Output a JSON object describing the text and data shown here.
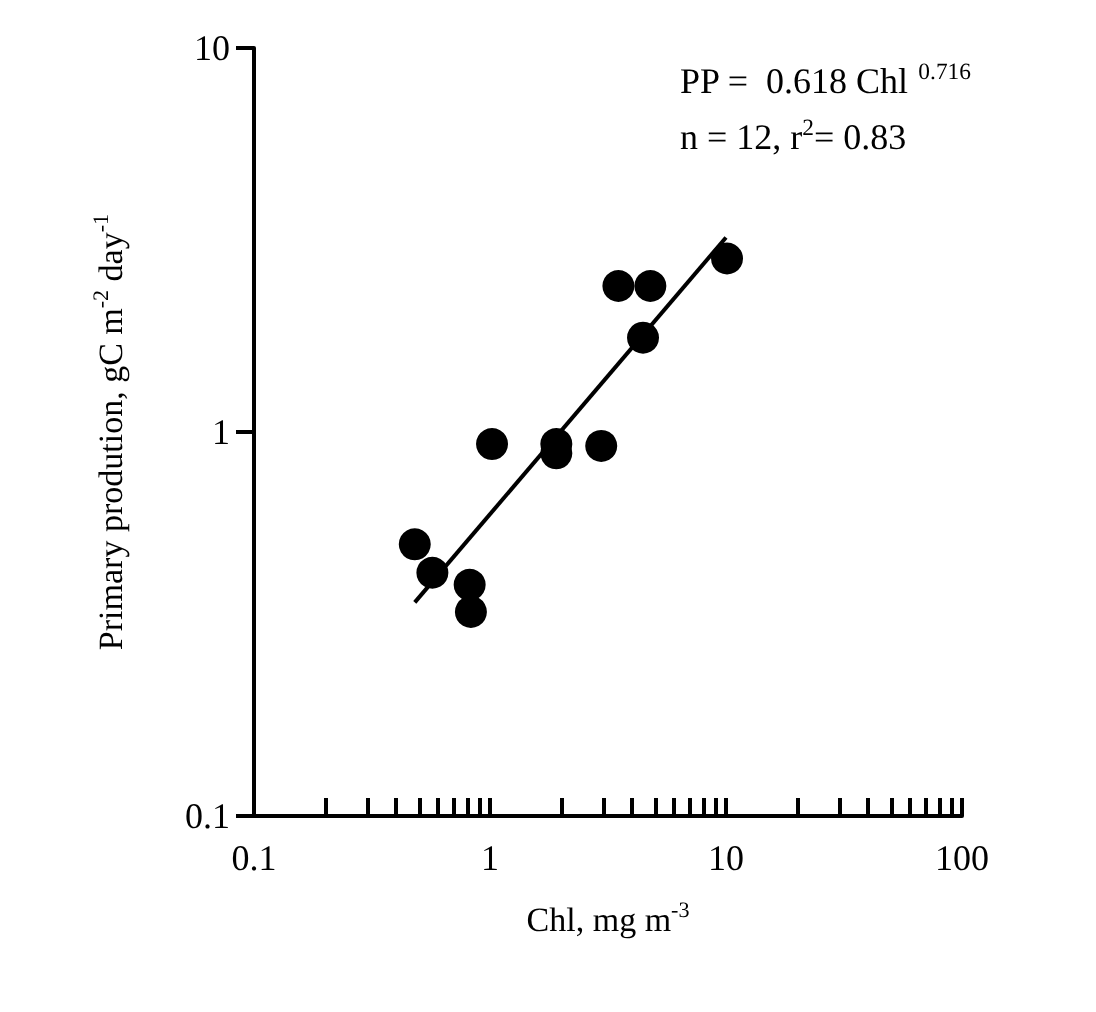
{
  "chart_data": {
    "type": "scatter",
    "xlabel": "Chl, mg m$^{-3}$",
    "ylabel": "Primary prodution, gC m$^{-2}$ day$^{-1}$",
    "annotations": [
      "PP =  0.618 Chl $^{0.716}$",
      "n = 12, r$^{2}$= 0.83"
    ],
    "log": "xy",
    "xlim": [
      0.1,
      100
    ],
    "ylim": [
      0.1,
      10
    ],
    "xticks": [
      0.1,
      {
        "value": 0.2,
        "label": null
      },
      {
        "value": 0.3,
        "label": null
      },
      {
        "value": 0.4,
        "label": null
      },
      {
        "value": 0.5,
        "label": null
      },
      {
        "value": 0.6,
        "label": null
      },
      {
        "value": 0.7,
        "label": null
      },
      {
        "value": 0.8,
        "label": null
      },
      {
        "value": 0.9,
        "label": null
      },
      1,
      {
        "value": 2,
        "label": null
      },
      {
        "value": 3,
        "label": null
      },
      {
        "value": 4,
        "label": null
      },
      {
        "value": 5,
        "label": null
      },
      {
        "value": 6,
        "label": null
      },
      {
        "value": 7,
        "label": null
      },
      {
        "value": 8,
        "label": null
      },
      {
        "value": 9,
        "label": null
      },
      10,
      {
        "value": 20,
        "label": null
      },
      {
        "value": 30,
        "label": null
      },
      {
        "value": 40,
        "label": null
      },
      {
        "value": 50,
        "label": null
      },
      {
        "value": 60,
        "label": null
      },
      {
        "value": 70,
        "label": null
      },
      {
        "value": 80,
        "label": null
      },
      {
        "value": 90,
        "label": null
      },
      100
    ],
    "yticks": [
      0.1,
      1,
      10
    ],
    "grid": false,
    "marker": "circle",
    "series": [
      {
        "color": "#000000",
        "x": [
          0.48,
          0.57,
          0.82,
          0.83,
          1.02,
          1.91,
          1.91,
          2.96,
          3.5,
          4.78,
          4.45,
          10.1
        ],
        "values": [
          0.51,
          0.43,
          0.4,
          0.34,
          0.93,
          0.93,
          0.88,
          0.92,
          2.4,
          2.4,
          1.76,
          2.83
        ]
      },
      {
        "type": "line",
        "color": "#000000",
        "marker": "none",
        "line_style": "solid",
        "x": [
          0.48,
          10
        ],
        "values": [
          0.36,
          3.21
        ]
      }
    ]
  }
}
